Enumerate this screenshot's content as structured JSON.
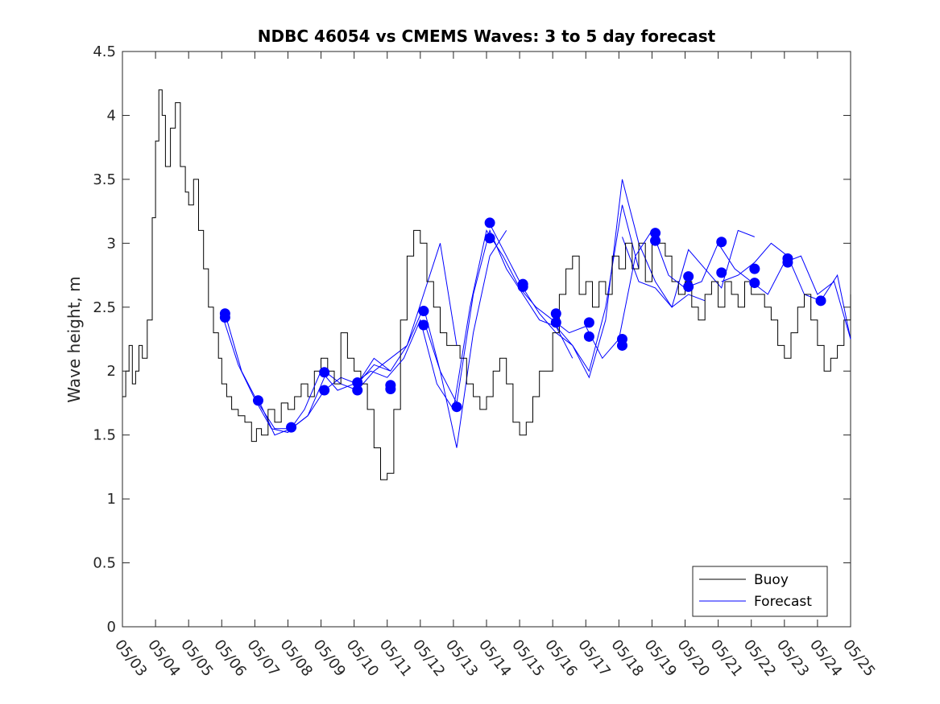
{
  "chart_data": {
    "type": "line",
    "title": "NDBC 46054 vs CMEMS Waves: 3 to 5 day forecast",
    "xlabel": "",
    "ylabel": "Wave height, m",
    "xlim": [
      "05/03",
      "05/25"
    ],
    "ylim": [
      0,
      4.5
    ],
    "x_tick_labels": [
      "05/03",
      "05/04",
      "05/05",
      "05/06",
      "05/07",
      "05/08",
      "05/09",
      "05/10",
      "05/11",
      "05/12",
      "05/13",
      "05/14",
      "05/15",
      "05/16",
      "05/17",
      "05/18",
      "05/19",
      "05/20",
      "05/21",
      "05/22",
      "05/23",
      "05/24",
      "05/25"
    ],
    "y_ticks": [
      0,
      0.5,
      1,
      1.5,
      2,
      2.5,
      3,
      3.5,
      4,
      4.5
    ],
    "y_tick_labels": [
      "0",
      "0.5",
      "1",
      "1.5",
      "2",
      "2.5",
      "3",
      "3.5",
      "4",
      "4.5"
    ],
    "grid": false,
    "legend_position": "bottom-right",
    "x_unit": "days since 05/03",
    "series": [
      {
        "name": "Buoy",
        "color": "#000000",
        "x": [
          0.0,
          0.1,
          0.2,
          0.3,
          0.4,
          0.5,
          0.6,
          0.75,
          0.9,
          1.0,
          1.1,
          1.2,
          1.3,
          1.45,
          1.6,
          1.75,
          1.9,
          2.0,
          2.15,
          2.3,
          2.45,
          2.6,
          2.75,
          2.9,
          3.0,
          3.15,
          3.3,
          3.5,
          3.7,
          3.9,
          4.05,
          4.2,
          4.4,
          4.6,
          4.8,
          5.0,
          5.2,
          5.4,
          5.6,
          5.8,
          6.0,
          6.2,
          6.4,
          6.6,
          6.8,
          7.0,
          7.2,
          7.4,
          7.6,
          7.8,
          8.0,
          8.2,
          8.4,
          8.6,
          8.8,
          9.0,
          9.2,
          9.4,
          9.6,
          9.8,
          10.0,
          10.2,
          10.4,
          10.6,
          10.8,
          11.0,
          11.2,
          11.4,
          11.6,
          11.8,
          12.0,
          12.2,
          12.4,
          12.6,
          12.8,
          13.0,
          13.2,
          13.4,
          13.6,
          13.8,
          14.0,
          14.2,
          14.4,
          14.6,
          14.8,
          15.0,
          15.2,
          15.4,
          15.6,
          15.8,
          16.0,
          16.2,
          16.4,
          16.6,
          16.8,
          17.0,
          17.2,
          17.4,
          17.6,
          17.8,
          18.0,
          18.2,
          18.4,
          18.6,
          18.8,
          19.0,
          19.2,
          19.4,
          19.6,
          19.8,
          20.0,
          20.2,
          20.4,
          20.6,
          20.8,
          21.0,
          21.2,
          21.4,
          21.6,
          21.8,
          22.0
        ],
        "values": [
          1.8,
          2.0,
          2.2,
          1.9,
          2.0,
          2.2,
          2.1,
          2.4,
          3.2,
          3.8,
          4.2,
          4.0,
          3.6,
          3.9,
          4.1,
          3.6,
          3.4,
          3.3,
          3.5,
          3.1,
          2.8,
          2.5,
          2.3,
          2.1,
          1.9,
          1.8,
          1.7,
          1.65,
          1.6,
          1.45,
          1.55,
          1.5,
          1.7,
          1.6,
          1.75,
          1.7,
          1.8,
          1.9,
          1.8,
          2.0,
          2.1,
          2.0,
          1.9,
          2.3,
          2.1,
          2.0,
          1.9,
          1.7,
          1.4,
          1.15,
          1.2,
          1.7,
          2.4,
          2.9,
          3.1,
          3.0,
          2.7,
          2.5,
          2.3,
          2.2,
          2.2,
          2.1,
          1.9,
          1.8,
          1.7,
          1.8,
          2.0,
          2.1,
          1.9,
          1.6,
          1.5,
          1.6,
          1.8,
          2.0,
          2.0,
          2.3,
          2.6,
          2.8,
          2.9,
          2.6,
          2.7,
          2.5,
          2.7,
          2.6,
          2.9,
          2.8,
          3.0,
          2.8,
          3.0,
          2.7,
          3.1,
          3.0,
          2.9,
          2.7,
          2.6,
          2.7,
          2.5,
          2.4,
          2.6,
          2.7,
          2.5,
          2.7,
          2.6,
          2.5,
          2.7,
          2.6,
          2.6,
          2.5,
          2.4,
          2.2,
          2.1,
          2.3,
          2.5,
          2.6,
          2.4,
          2.2,
          2.0,
          2.1,
          2.2,
          2.4,
          2.6
        ]
      },
      {
        "name": "Forecast",
        "color": "#0000ff",
        "x": [
          3.0,
          3.5,
          4.0,
          4.5,
          5.0,
          5.5,
          6.0,
          6.5,
          7.0,
          7.5,
          8.0,
          8.5,
          9.0,
          9.5,
          10.0,
          10.5,
          11.0,
          11.5,
          12.0,
          12.5,
          13.0,
          13.5,
          14.0,
          14.5,
          15.0,
          15.5,
          16.0,
          16.5,
          17.0,
          17.5,
          18.0,
          18.5,
          19.0,
          19.5,
          20.0,
          20.5,
          21.0,
          21.5,
          22.0
        ],
        "values": [
          2.45,
          2.05,
          1.78,
          1.55,
          1.52,
          1.7,
          2.0,
          1.85,
          1.9,
          2.0,
          1.95,
          2.1,
          2.4,
          1.9,
          1.7,
          2.5,
          3.1,
          2.9,
          2.65,
          2.5,
          2.4,
          2.3,
          2.35,
          2.1,
          2.25,
          2.9,
          3.1,
          2.75,
          2.65,
          2.7,
          3.0,
          2.8,
          2.7,
          2.6,
          2.85,
          2.9,
          2.6,
          2.7,
          2.25
        ]
      }
    ],
    "forecast_runs": [
      {
        "x": [
          3.1,
          3.6,
          4.1,
          4.6,
          5.1,
          5.6,
          6.1
        ],
        "values": [
          2.45,
          2.0,
          1.75,
          1.55,
          1.55,
          1.65,
          1.95
        ]
      },
      {
        "x": [
          4.1,
          4.6,
          5.1,
          5.6,
          6.1,
          6.6,
          7.1,
          7.6,
          8.1
        ],
        "values": [
          1.78,
          1.5,
          1.55,
          1.65,
          1.85,
          1.95,
          1.9,
          2.05,
          2.0
        ]
      },
      {
        "x": [
          6.1,
          6.6,
          7.1,
          7.6,
          8.1,
          8.6,
          9.1,
          9.6,
          10.1
        ],
        "values": [
          2.0,
          1.9,
          1.85,
          2.0,
          2.1,
          2.2,
          2.6,
          3.0,
          2.2
        ]
      },
      {
        "x": [
          7.1,
          7.6,
          8.1,
          8.6,
          9.1,
          9.6,
          10.1,
          10.6,
          11.1,
          11.6
        ],
        "values": [
          1.9,
          2.1,
          2.0,
          2.2,
          2.5,
          2.0,
          1.4,
          2.3,
          2.9,
          3.1
        ]
      },
      {
        "x": [
          9.1,
          9.6,
          10.1,
          10.6,
          11.1,
          11.6,
          12.1,
          12.6,
          13.1,
          13.6
        ],
        "values": [
          2.4,
          2.0,
          1.75,
          2.6,
          3.1,
          2.8,
          2.6,
          2.4,
          2.35,
          2.1
        ]
      },
      {
        "x": [
          11.1,
          11.6,
          12.1,
          12.6,
          13.1,
          13.6,
          14.1,
          14.6,
          15.1,
          15.6
        ],
        "values": [
          3.15,
          2.9,
          2.65,
          2.45,
          2.3,
          2.2,
          2.0,
          2.5,
          3.3,
          2.8
        ]
      },
      {
        "x": [
          13.1,
          13.6,
          14.1,
          14.6,
          15.1,
          15.6,
          16.1,
          16.6,
          17.1,
          17.6
        ],
        "values": [
          2.35,
          2.2,
          1.95,
          2.4,
          3.5,
          3.0,
          2.7,
          2.5,
          2.6,
          2.55
        ]
      },
      {
        "x": [
          15.1,
          15.6,
          16.1,
          16.6,
          17.1,
          17.6,
          18.1,
          18.6,
          19.1
        ],
        "values": [
          3.05,
          2.7,
          2.65,
          2.5,
          2.95,
          2.8,
          2.65,
          3.1,
          3.05
        ]
      },
      {
        "x": [
          18.1,
          18.6,
          19.1,
          19.6,
          20.1,
          20.6,
          21.1,
          21.6,
          22.0
        ],
        "values": [
          2.7,
          2.75,
          2.85,
          3.0,
          2.9,
          2.6,
          2.55,
          2.75,
          2.25
        ]
      }
    ],
    "forecast_markers": {
      "x": [
        3.1,
        3.1,
        4.1,
        5.1,
        6.1,
        6.1,
        7.1,
        7.1,
        8.1,
        8.1,
        9.1,
        9.1,
        10.1,
        11.1,
        11.1,
        12.1,
        12.1,
        13.1,
        13.1,
        14.1,
        14.1,
        15.1,
        15.1,
        16.1,
        16.1,
        17.1,
        17.1,
        18.1,
        18.1,
        19.1,
        19.1,
        20.1,
        20.1,
        21.1
      ],
      "values": [
        2.45,
        2.42,
        1.77,
        1.56,
        1.99,
        1.85,
        1.91,
        1.85,
        1.89,
        1.86,
        2.47,
        2.36,
        1.72,
        3.16,
        3.04,
        2.68,
        2.66,
        2.45,
        2.38,
        2.38,
        2.27,
        2.25,
        2.2,
        3.08,
        3.02,
        2.74,
        2.66,
        3.01,
        2.77,
        2.8,
        2.69,
        2.88,
        2.85,
        2.55
      ]
    }
  }
}
